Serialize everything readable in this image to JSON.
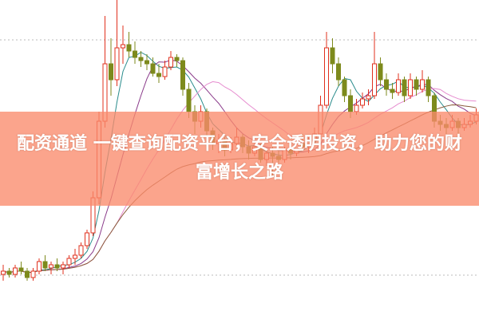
{
  "banner": {
    "text": "配资通道 一键查询配资平台，安全透明投资，助力您的财富增长之路",
    "background": "#fa8a6c"
  },
  "chart_data": {
    "type": "candlestick",
    "title": "",
    "grid": "dotted horizontal",
    "colors": {
      "up": "#e0301e",
      "down": "#7d8a1c",
      "ma5": "#2a8c8c",
      "ma10": "#8a3a8a",
      "ma20": "#e68ccf",
      "ma60": "#8a5a3a"
    },
    "moving_averages": [
      5,
      10,
      20,
      60
    ],
    "ylim": [
      0,
      100
    ],
    "candles_ohlc": [
      [
        14,
        17,
        12,
        15
      ],
      [
        15,
        16,
        13,
        14
      ],
      [
        14,
        17,
        13,
        16
      ],
      [
        16,
        18,
        14,
        15
      ],
      [
        15,
        16,
        12,
        13
      ],
      [
        13,
        16,
        12,
        15
      ],
      [
        15,
        19,
        14,
        18
      ],
      [
        18,
        20,
        15,
        16
      ],
      [
        16,
        18,
        14,
        17
      ],
      [
        17,
        19,
        15,
        16
      ],
      [
        16,
        18,
        14,
        17
      ],
      [
        17,
        20,
        16,
        19
      ],
      [
        19,
        22,
        17,
        20
      ],
      [
        20,
        24,
        19,
        23
      ],
      [
        23,
        28,
        22,
        27
      ],
      [
        27,
        40,
        26,
        38
      ],
      [
        38,
        65,
        36,
        62
      ],
      [
        62,
        95,
        60,
        80
      ],
      [
        80,
        88,
        70,
        75
      ],
      [
        75,
        100,
        73,
        85
      ],
      [
        85,
        92,
        80,
        86
      ],
      [
        86,
        90,
        82,
        84
      ],
      [
        84,
        87,
        80,
        82
      ],
      [
        82,
        84,
        79,
        81
      ],
      [
        81,
        83,
        78,
        80
      ],
      [
        80,
        82,
        76,
        77
      ],
      [
        77,
        80,
        74,
        76
      ],
      [
        76,
        81,
        75,
        79
      ],
      [
        79,
        84,
        78,
        82
      ],
      [
        82,
        83,
        79,
        81
      ],
      [
        81,
        82,
        70,
        72
      ],
      [
        72,
        74,
        63,
        65
      ],
      [
        65,
        67,
        58,
        62
      ],
      [
        62,
        67,
        60,
        65
      ],
      [
        65,
        66,
        57,
        59
      ],
      [
        59,
        60,
        53,
        55
      ],
      [
        55,
        58,
        52,
        56
      ],
      [
        56,
        57,
        51,
        53
      ],
      [
        53,
        57,
        52,
        55
      ],
      [
        55,
        60,
        54,
        57
      ],
      [
        57,
        58,
        52,
        54
      ],
      [
        54,
        56,
        50,
        52
      ],
      [
        52,
        55,
        51,
        54
      ],
      [
        54,
        55,
        49,
        50
      ],
      [
        50,
        53,
        48,
        52
      ],
      [
        52,
        54,
        45,
        51
      ],
      [
        51,
        53,
        49,
        50
      ],
      [
        50,
        54,
        49,
        53
      ],
      [
        53,
        55,
        50,
        52
      ],
      [
        52,
        56,
        51,
        55
      ],
      [
        55,
        58,
        53,
        54
      ],
      [
        54,
        57,
        52,
        56
      ],
      [
        56,
        60,
        55,
        58
      ],
      [
        58,
        70,
        57,
        67
      ],
      [
        67,
        90,
        66,
        85
      ],
      [
        85,
        88,
        77,
        80
      ],
      [
        80,
        82,
        73,
        75
      ],
      [
        75,
        76,
        68,
        70
      ],
      [
        70,
        72,
        63,
        65
      ],
      [
        65,
        69,
        64,
        67
      ],
      [
        67,
        71,
        66,
        69
      ],
      [
        69,
        72,
        67,
        70
      ],
      [
        70,
        90,
        69,
        80
      ],
      [
        80,
        82,
        73,
        75
      ],
      [
        75,
        77,
        70,
        72
      ],
      [
        72,
        74,
        69,
        71
      ],
      [
        71,
        77,
        70,
        75
      ],
      [
        75,
        76,
        68,
        70
      ],
      [
        70,
        77,
        69,
        75
      ],
      [
        75,
        76,
        70,
        72
      ],
      [
        72,
        78,
        71,
        75
      ],
      [
        75,
        76,
        68,
        70
      ],
      [
        70,
        71,
        60,
        62
      ],
      [
        62,
        64,
        59,
        61
      ],
      [
        61,
        63,
        58,
        60
      ],
      [
        60,
        64,
        59,
        62
      ],
      [
        62,
        63,
        58,
        60
      ],
      [
        60,
        63,
        59,
        61
      ],
      [
        61,
        64,
        60,
        62
      ],
      [
        62,
        66,
        61,
        64
      ]
    ]
  }
}
